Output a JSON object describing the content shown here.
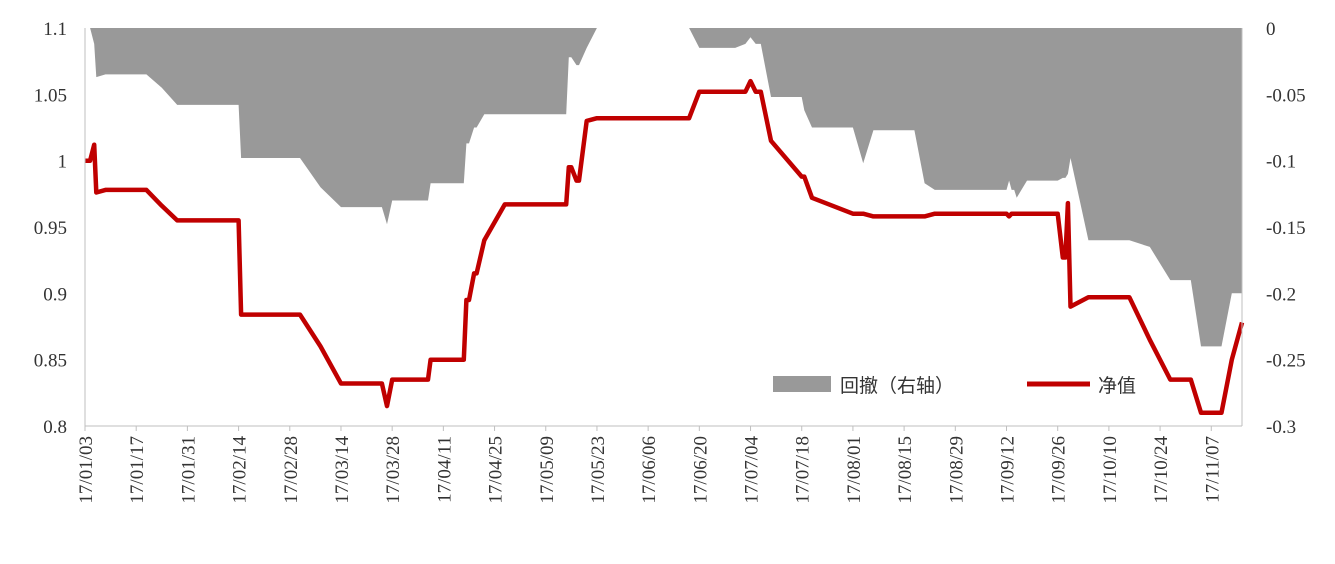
{
  "chart_data": {
    "type": "line",
    "title": "",
    "xlabel": "",
    "ylabel": "",
    "left_axis": {
      "min": 0.8,
      "max": 1.1,
      "ticks": [
        "0.8",
        "0.85",
        "0.9",
        "0.95",
        "1",
        "1.05",
        "1.1"
      ]
    },
    "right_axis": {
      "min": -0.3,
      "max": 0,
      "ticks": [
        "-0.3",
        "-0.25",
        "-0.2",
        "-0.15",
        "-0.1",
        "-0.05",
        "0"
      ]
    },
    "x_tick_labels": [
      "17/01/03",
      "17/01/17",
      "17/01/31",
      "17/02/14",
      "17/02/28",
      "17/03/14",
      "17/03/28",
      "17/04/11",
      "17/04/25",
      "17/05/09",
      "17/05/23",
      "17/06/06",
      "17/06/20",
      "17/07/04",
      "17/07/18",
      "17/08/01",
      "17/08/15",
      "17/08/29",
      "17/09/12",
      "17/09/26",
      "17/10/10",
      "17/10/24",
      "17/11/07"
    ],
    "x_range": [
      0,
      226
    ],
    "legend": {
      "placement": "bottom-right"
    },
    "series": [
      {
        "name": "回撤（右轴）",
        "type": "area",
        "axis": "right",
        "color": "#999999",
        "x": [
          0,
          1,
          1.8,
          2.2,
          4,
          12,
          15,
          18,
          30,
          30.5,
          42,
          46,
          50,
          53,
          58,
          59,
          60,
          61,
          62,
          67,
          67.5,
          68,
          69,
          74,
          74.5,
          75,
          76,
          76.5,
          78,
          82,
          86,
          90,
          94,
          94.5,
          95,
          96,
          96.5,
          98,
          100,
          106,
          106.5,
          108,
          110,
          118,
          120,
          122,
          124,
          127,
          129,
          130,
          131,
          132,
          134,
          140,
          140.5,
          142,
          150,
          152,
          154,
          162,
          164,
          166,
          166.5,
          168,
          170,
          172,
          180,
          180.5,
          181,
          181.5,
          182,
          184,
          186,
          188,
          190,
          191,
          191.5,
          192,
          192.5,
          196,
          198,
          202,
          204,
          208,
          212,
          214,
          216,
          218,
          222,
          224,
          226
        ],
        "values": [
          0,
          0,
          -0.012,
          -0.037,
          -0.035,
          -0.035,
          -0.045,
          -0.058,
          -0.058,
          -0.098,
          -0.098,
          -0.12,
          -0.135,
          -0.135,
          -0.135,
          -0.148,
          -0.13,
          -0.13,
          -0.13,
          -0.13,
          -0.117,
          -0.117,
          -0.117,
          -0.117,
          -0.087,
          -0.087,
          -0.075,
          -0.075,
          -0.065,
          -0.065,
          -0.065,
          -0.065,
          -0.065,
          -0.022,
          -0.022,
          -0.028,
          -0.028,
          -0.015,
          0,
          0,
          0,
          0,
          0,
          0,
          -0.015,
          -0.015,
          -0.015,
          -0.015,
          -0.012,
          -0.007,
          -0.012,
          -0.012,
          -0.052,
          -0.052,
          -0.062,
          -0.075,
          -0.075,
          -0.102,
          -0.077,
          -0.077,
          -0.117,
          -0.122,
          -0.122,
          -0.122,
          -0.122,
          -0.122,
          -0.122,
          -0.115,
          -0.122,
          -0.122,
          -0.128,
          -0.115,
          -0.115,
          -0.115,
          -0.115,
          -0.113,
          -0.113,
          -0.11,
          -0.098,
          -0.16,
          -0.16,
          -0.16,
          -0.16,
          -0.165,
          -0.19,
          -0.19,
          -0.19,
          -0.24,
          -0.24,
          -0.2,
          -0.2
        ]
      },
      {
        "name": "净值",
        "type": "line",
        "axis": "left",
        "color": "#c00000",
        "x": [
          0,
          1,
          1.8,
          2.2,
          4,
          12,
          15,
          18,
          30,
          30.5,
          42,
          46,
          50,
          53,
          58,
          59,
          60,
          61,
          62,
          67,
          67.5,
          68,
          69,
          74,
          74.5,
          75,
          76,
          76.5,
          78,
          82,
          86,
          90,
          94,
          94.5,
          95,
          96,
          96.5,
          98,
          100,
          106,
          106.5,
          108,
          110,
          118,
          120,
          122,
          124,
          127,
          129,
          130,
          131,
          132,
          134,
          140,
          140.5,
          142,
          150,
          152,
          154,
          162,
          164,
          166,
          166.5,
          168,
          170,
          172,
          180,
          180.5,
          181,
          181.5,
          182,
          184,
          186,
          188,
          190,
          191,
          191.5,
          192,
          192.5,
          196,
          198,
          202,
          204,
          208,
          212,
          214,
          216,
          218,
          222,
          224,
          226
        ],
        "values": [
          1.0,
          1.0,
          1.012,
          0.976,
          0.978,
          0.978,
          0.966,
          0.955,
          0.955,
          0.884,
          0.884,
          0.86,
          0.832,
          0.832,
          0.832,
          0.815,
          0.835,
          0.835,
          0.835,
          0.835,
          0.85,
          0.85,
          0.85,
          0.85,
          0.895,
          0.895,
          0.915,
          0.915,
          0.94,
          0.967,
          0.967,
          0.967,
          0.967,
          0.995,
          0.995,
          0.985,
          0.985,
          1.03,
          1.032,
          1.032,
          1.032,
          1.032,
          1.032,
          1.032,
          1.052,
          1.052,
          1.052,
          1.052,
          1.052,
          1.06,
          1.052,
          1.052,
          1.015,
          0.988,
          0.988,
          0.972,
          0.96,
          0.96,
          0.958,
          0.958,
          0.958,
          0.96,
          0.96,
          0.96,
          0.96,
          0.96,
          0.96,
          0.958,
          0.96,
          0.96,
          0.96,
          0.96,
          0.96,
          0.96,
          0.96,
          0.927,
          0.927,
          0.968,
          0.89,
          0.897,
          0.897,
          0.897,
          0.897,
          0.865,
          0.835,
          0.835,
          0.835,
          0.81,
          0.81,
          0.85,
          0.878
        ]
      }
    ]
  }
}
